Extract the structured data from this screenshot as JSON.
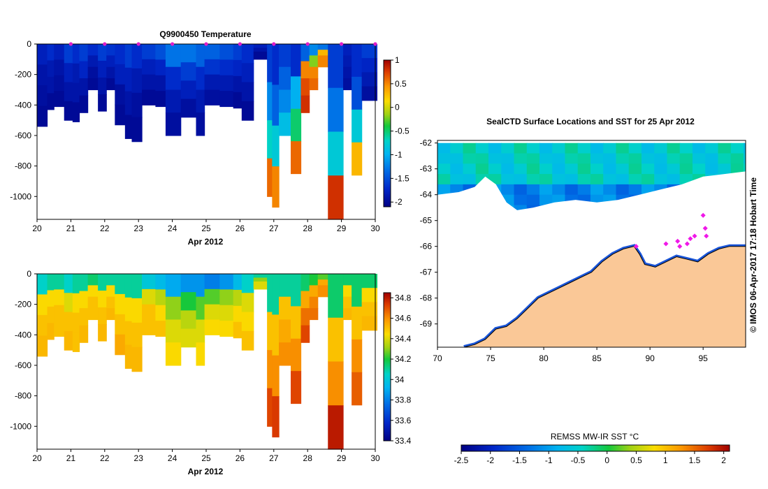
{
  "chart_data": [
    {
      "type": "heatmap",
      "title": "Q9900450  Temperature",
      "xlabel": "Apr 2012",
      "ylabel": "",
      "xlim": [
        20,
        30
      ],
      "ylim": [
        0,
        -1150
      ],
      "x_ticks": [
        "20",
        "21",
        "22",
        "23",
        "24",
        "25",
        "26",
        "27",
        "28",
        "29",
        "30"
      ],
      "y_ticks": [
        "0",
        "-200",
        "-400",
        "-600",
        "-800",
        "-1000"
      ],
      "colorbar": {
        "min": -2.1,
        "max": 1,
        "ticks": [
          "1",
          "0.5",
          "0",
          "-0.5",
          "-1",
          "-1.5",
          "-2"
        ]
      },
      "profile_markers_x": [
        21,
        22,
        23,
        24,
        25,
        26,
        27,
        28,
        29,
        30
      ],
      "profiles": [
        {
          "x0": 20.0,
          "x1": 20.3,
          "max_depth": 540,
          "vals": [
            -1.8,
            -1.9,
            -1.95,
            -2.0
          ]
        },
        {
          "x0": 20.3,
          "x1": 20.5,
          "max_depth": 430,
          "vals": [
            -1.7,
            -1.85,
            -1.9,
            -2.0
          ]
        },
        {
          "x0": 20.5,
          "x1": 20.8,
          "max_depth": 410,
          "vals": [
            -1.8,
            -1.9,
            -1.95,
            -2.0
          ]
        },
        {
          "x0": 20.8,
          "x1": 21.05,
          "max_depth": 500,
          "vals": [
            -1.6,
            -1.8,
            -1.9,
            -2.0
          ]
        },
        {
          "x0": 21.05,
          "x1": 21.25,
          "max_depth": 510,
          "vals": [
            -1.7,
            -1.85,
            -1.9,
            -2.0
          ]
        },
        {
          "x0": 21.25,
          "x1": 21.5,
          "max_depth": 450,
          "vals": [
            -1.6,
            -1.75,
            -1.9,
            -2.0
          ]
        },
        {
          "x0": 21.5,
          "x1": 21.8,
          "max_depth": 300,
          "vals": [
            -1.7,
            -1.85,
            -1.95,
            -2.0
          ]
        },
        {
          "x0": 21.8,
          "x1": 22.05,
          "max_depth": 440,
          "vals": [
            -1.6,
            -1.8,
            -1.9,
            -2.0
          ]
        },
        {
          "x0": 22.05,
          "x1": 22.3,
          "max_depth": 300,
          "vals": [
            -1.65,
            -1.8,
            -1.9,
            -2.0
          ]
        },
        {
          "x0": 22.3,
          "x1": 22.6,
          "max_depth": 530,
          "vals": [
            -1.7,
            -1.8,
            -1.95,
            -2.0
          ]
        },
        {
          "x0": 22.6,
          "x1": 22.8,
          "max_depth": 620,
          "vals": [
            -1.6,
            -1.8,
            -1.9,
            -2.0
          ]
        },
        {
          "x0": 22.8,
          "x1": 23.1,
          "max_depth": 640,
          "vals": [
            -1.7,
            -1.85,
            -1.95,
            -2.0
          ]
        },
        {
          "x0": 23.1,
          "x1": 23.5,
          "max_depth": 400,
          "vals": [
            -1.6,
            -1.8,
            -1.9,
            -2.0
          ]
        },
        {
          "x0": 23.5,
          "x1": 23.8,
          "max_depth": 410,
          "vals": [
            -1.5,
            -1.75,
            -1.9,
            -2.0
          ]
        },
        {
          "x0": 23.8,
          "x1": 24.25,
          "max_depth": 600,
          "vals": [
            -1.3,
            -1.7,
            -1.85,
            -1.95
          ]
        },
        {
          "x0": 24.25,
          "x1": 24.7,
          "max_depth": 480,
          "vals": [
            -1.3,
            -1.6,
            -1.8,
            -1.95
          ]
        },
        {
          "x0": 24.7,
          "x1": 24.95,
          "max_depth": 600,
          "vals": [
            -1.4,
            -1.7,
            -1.85,
            -1.95
          ]
        },
        {
          "x0": 24.95,
          "x1": 25.4,
          "max_depth": 400,
          "vals": [
            -1.4,
            -1.65,
            -1.85,
            -1.95
          ]
        },
        {
          "x0": 25.4,
          "x1": 25.8,
          "max_depth": 410,
          "vals": [
            -1.5,
            -1.7,
            -1.85,
            -1.95
          ]
        },
        {
          "x0": 25.8,
          "x1": 26.05,
          "max_depth": 420,
          "vals": [
            -1.6,
            -1.75,
            -1.9,
            -2.0
          ]
        },
        {
          "x0": 26.05,
          "x1": 26.4,
          "max_depth": 500,
          "vals": [
            -1.7,
            -1.8,
            -1.9,
            -2.0
          ]
        },
        {
          "x0": 26.4,
          "x1": 26.8,
          "max_depth": 100,
          "vals": [
            -1.8,
            -1.9,
            -2.0,
            -2.0
          ]
        },
        {
          "x0": 26.8,
          "x1": 26.95,
          "max_depth": 1000,
          "vals": [
            -1.6,
            -1.2,
            -0.7,
            0.6
          ]
        },
        {
          "x0": 26.95,
          "x1": 27.15,
          "max_depth": 1070,
          "vals": [
            -1.7,
            -1.4,
            -0.8,
            0.5
          ]
        },
        {
          "x0": 27.15,
          "x1": 27.5,
          "max_depth": 600,
          "vals": [
            -1.6,
            -1.4,
            -1.2,
            -0.9
          ]
        },
        {
          "x0": 27.5,
          "x1": 27.8,
          "max_depth": 850,
          "vals": [
            -1.7,
            -1.0,
            -0.5,
            0.6
          ]
        },
        {
          "x0": 27.8,
          "x1": 28.05,
          "max_depth": 450,
          "vals": [
            -1.4,
            0.5,
            0.7,
            0.8
          ]
        },
        {
          "x0": 28.05,
          "x1": 28.3,
          "max_depth": 300,
          "vals": [
            -1.2,
            -0.2,
            0.5,
            0.6
          ]
        },
        {
          "x0": 28.3,
          "x1": 28.6,
          "max_depth": 150,
          "vals": [
            -1.3,
            0.3,
            0.5,
            0.5
          ]
        },
        {
          "x0": 28.6,
          "x1": 29.05,
          "max_depth": 1150,
          "vals": [
            -1.6,
            -1.3,
            -0.8,
            0.8
          ]
        },
        {
          "x0": 29.05,
          "x1": 29.3,
          "max_depth": 300,
          "vals": [
            -1.8,
            -1.85,
            -1.9,
            -1.95
          ]
        },
        {
          "x0": 29.3,
          "x1": 29.6,
          "max_depth": 860,
          "vals": [
            -1.7,
            -1.5,
            -0.8,
            0.3
          ]
        },
        {
          "x0": 29.6,
          "x1": 30.05,
          "max_depth": 370,
          "vals": [
            -1.6,
            -1.75,
            -1.85,
            -1.95
          ]
        }
      ]
    },
    {
      "type": "heatmap",
      "title": "",
      "xlabel": "Apr 2012",
      "ylabel": "",
      "xlim": [
        20,
        30
      ],
      "ylim": [
        0,
        -1150
      ],
      "x_ticks": [
        "20",
        "21",
        "22",
        "23",
        "24",
        "25",
        "26",
        "27",
        "28",
        "29",
        "30"
      ],
      "y_ticks": [
        "0",
        "-200",
        "-400",
        "-600",
        "-800",
        "-1000"
      ],
      "colorbar": {
        "min": 33.4,
        "max": 34.85,
        "ticks": [
          "34.8",
          "34.6",
          "34.4",
          "34.2",
          "34",
          "33.8",
          "33.6",
          "33.4"
        ]
      },
      "profiles": [
        {
          "x0": 20.0,
          "x1": 20.3,
          "max_depth": 540,
          "vals": [
            34.05,
            34.45,
            34.5,
            34.52
          ]
        },
        {
          "x0": 20.3,
          "x1": 20.5,
          "max_depth": 430,
          "vals": [
            34.1,
            34.45,
            34.5,
            34.52
          ]
        },
        {
          "x0": 20.5,
          "x1": 20.8,
          "max_depth": 410,
          "vals": [
            34.1,
            34.45,
            34.5,
            34.5
          ]
        },
        {
          "x0": 20.8,
          "x1": 21.05,
          "max_depth": 500,
          "vals": [
            34.05,
            34.4,
            34.5,
            34.52
          ]
        },
        {
          "x0": 21.05,
          "x1": 21.25,
          "max_depth": 510,
          "vals": [
            34.1,
            34.45,
            34.5,
            34.5
          ]
        },
        {
          "x0": 21.25,
          "x1": 21.5,
          "max_depth": 450,
          "vals": [
            34.1,
            34.45,
            34.5,
            34.52
          ]
        },
        {
          "x0": 21.5,
          "x1": 21.8,
          "max_depth": 300,
          "vals": [
            34.15,
            34.45,
            34.5,
            34.5
          ]
        },
        {
          "x0": 21.8,
          "x1": 22.05,
          "max_depth": 440,
          "vals": [
            34.1,
            34.45,
            34.5,
            34.52
          ]
        },
        {
          "x0": 22.05,
          "x1": 22.3,
          "max_depth": 300,
          "vals": [
            34.1,
            34.45,
            34.5,
            34.52
          ]
        },
        {
          "x0": 22.3,
          "x1": 22.6,
          "max_depth": 530,
          "vals": [
            34.1,
            34.45,
            34.5,
            34.55
          ]
        },
        {
          "x0": 22.6,
          "x1": 22.8,
          "max_depth": 620,
          "vals": [
            34.1,
            34.45,
            34.5,
            34.52
          ]
        },
        {
          "x0": 22.8,
          "x1": 23.1,
          "max_depth": 640,
          "vals": [
            34.1,
            34.45,
            34.5,
            34.52
          ]
        },
        {
          "x0": 23.1,
          "x1": 23.5,
          "max_depth": 400,
          "vals": [
            34.0,
            34.4,
            34.5,
            34.5
          ]
        },
        {
          "x0": 23.5,
          "x1": 23.8,
          "max_depth": 410,
          "vals": [
            33.95,
            34.35,
            34.45,
            34.5
          ]
        },
        {
          "x0": 23.8,
          "x1": 24.25,
          "max_depth": 600,
          "vals": [
            33.9,
            34.3,
            34.4,
            34.45
          ]
        },
        {
          "x0": 24.25,
          "x1": 24.7,
          "max_depth": 480,
          "vals": [
            33.85,
            34.2,
            34.35,
            34.4
          ]
        },
        {
          "x0": 24.7,
          "x1": 24.95,
          "max_depth": 600,
          "vals": [
            33.85,
            34.25,
            34.4,
            34.45
          ]
        },
        {
          "x0": 24.95,
          "x1": 25.4,
          "max_depth": 400,
          "vals": [
            33.8,
            34.25,
            34.4,
            34.45
          ]
        },
        {
          "x0": 25.4,
          "x1": 25.8,
          "max_depth": 410,
          "vals": [
            33.85,
            34.3,
            34.4,
            34.45
          ]
        },
        {
          "x0": 25.8,
          "x1": 26.05,
          "max_depth": 420,
          "vals": [
            33.95,
            34.35,
            34.45,
            34.5
          ]
        },
        {
          "x0": 26.05,
          "x1": 26.4,
          "max_depth": 500,
          "vals": [
            34.05,
            34.4,
            34.45,
            34.5
          ]
        },
        {
          "x0": 26.4,
          "x1": 26.8,
          "max_depth": 100,
          "vals": [
            34.1,
            34.3,
            34.4,
            34.4
          ]
        },
        {
          "x0": 26.8,
          "x1": 26.95,
          "max_depth": 1000,
          "vals": [
            34.1,
            34.5,
            34.6,
            34.72
          ]
        },
        {
          "x0": 26.95,
          "x1": 27.15,
          "max_depth": 1070,
          "vals": [
            34.1,
            34.5,
            34.6,
            34.74
          ]
        },
        {
          "x0": 27.15,
          "x1": 27.5,
          "max_depth": 600,
          "vals": [
            34.1,
            34.5,
            34.55,
            34.6
          ]
        },
        {
          "x0": 27.5,
          "x1": 27.8,
          "max_depth": 850,
          "vals": [
            34.1,
            34.5,
            34.6,
            34.72
          ]
        },
        {
          "x0": 27.8,
          "x1": 28.05,
          "max_depth": 450,
          "vals": [
            34.15,
            34.55,
            34.65,
            34.72
          ]
        },
        {
          "x0": 28.05,
          "x1": 28.3,
          "max_depth": 300,
          "vals": [
            34.2,
            34.55,
            34.62,
            34.65
          ]
        },
        {
          "x0": 28.3,
          "x1": 28.6,
          "max_depth": 150,
          "vals": [
            34.25,
            34.55,
            34.6,
            34.6
          ]
        },
        {
          "x0": 28.6,
          "x1": 29.05,
          "max_depth": 1150,
          "vals": [
            34.15,
            34.5,
            34.6,
            34.8
          ]
        },
        {
          "x0": 29.05,
          "x1": 29.3,
          "max_depth": 300,
          "vals": [
            34.15,
            34.45,
            34.5,
            34.52
          ]
        },
        {
          "x0": 29.3,
          "x1": 29.6,
          "max_depth": 860,
          "vals": [
            34.15,
            34.5,
            34.6,
            34.68
          ]
        },
        {
          "x0": 29.6,
          "x1": 30.05,
          "max_depth": 370,
          "vals": [
            34.15,
            34.45,
            34.5,
            34.52
          ]
        }
      ]
    },
    {
      "type": "heatmap",
      "title": "SealCTD Surface Locations and SST for 25 Apr 2012",
      "xlim": [
        70,
        99
      ],
      "ylim": [
        -69.9,
        -61.9
      ],
      "x_ticks": [
        "70",
        "75",
        "80",
        "85",
        "90",
        "95"
      ],
      "y_ticks": [
        "-62",
        "-63",
        "-64",
        "-65",
        "-66",
        "-67",
        "-68",
        "-69"
      ],
      "side_label": "© IMOS 06-Apr-2017 17:18 Hobart Time",
      "colorbar": {
        "label": "REMSS MW-IR SST °C",
        "min": -2.5,
        "max": 2.1,
        "ticks": [
          "-2.5",
          "-2",
          "-1.5",
          "-1",
          "-0.5",
          "0",
          "0.5",
          "1",
          "1.5",
          "2"
        ]
      },
      "coastline": [
        [
          72.5,
          -69.9
        ],
        [
          73.5,
          -69.8
        ],
        [
          74.5,
          -69.6
        ],
        [
          75.5,
          -69.2
        ],
        [
          76.5,
          -69.1
        ],
        [
          77.5,
          -68.8
        ],
        [
          78.5,
          -68.4
        ],
        [
          79.5,
          -68.0
        ],
        [
          80.5,
          -67.8
        ],
        [
          81.5,
          -67.6
        ],
        [
          82.5,
          -67.4
        ],
        [
          83.5,
          -67.2
        ],
        [
          84.5,
          -67.0
        ],
        [
          85.5,
          -66.6
        ],
        [
          86.5,
          -66.3
        ],
        [
          87.5,
          -66.1
        ],
        [
          88.5,
          -66.0
        ],
        [
          89.0,
          -66.3
        ],
        [
          89.5,
          -66.7
        ],
        [
          90.5,
          -66.8
        ],
        [
          91.5,
          -66.6
        ],
        [
          92.5,
          -66.4
        ],
        [
          93.5,
          -66.5
        ],
        [
          94.5,
          -66.6
        ],
        [
          95.5,
          -66.3
        ],
        [
          96.5,
          -66.1
        ],
        [
          97.5,
          -66.0
        ],
        [
          99,
          -66.0
        ]
      ],
      "ice_edge_north": [
        [
          70,
          -64.0
        ],
        [
          72,
          -63.9
        ],
        [
          73.5,
          -63.7
        ],
        [
          74.5,
          -63.3
        ],
        [
          75.5,
          -63.6
        ],
        [
          76.5,
          -64.3
        ],
        [
          77.5,
          -64.6
        ],
        [
          79,
          -64.5
        ],
        [
          81,
          -64.3
        ],
        [
          83,
          -64.2
        ],
        [
          85,
          -64.3
        ],
        [
          87,
          -64.2
        ],
        [
          89,
          -64.0
        ],
        [
          91,
          -63.8
        ],
        [
          93,
          -63.6
        ],
        [
          95,
          -63.3
        ],
        [
          97,
          -63.2
        ],
        [
          99,
          -63.1
        ]
      ],
      "seal_positions": [
        [
          95.0,
          -64.8
        ],
        [
          95.2,
          -65.3
        ],
        [
          95.3,
          -65.6
        ],
        [
          93.8,
          -65.7
        ],
        [
          94.2,
          -65.6
        ],
        [
          92.6,
          -65.8
        ],
        [
          92.8,
          -66.0
        ],
        [
          88.7,
          -66.0
        ],
        [
          91.5,
          -65.9
        ],
        [
          93.5,
          -65.9
        ]
      ]
    }
  ]
}
